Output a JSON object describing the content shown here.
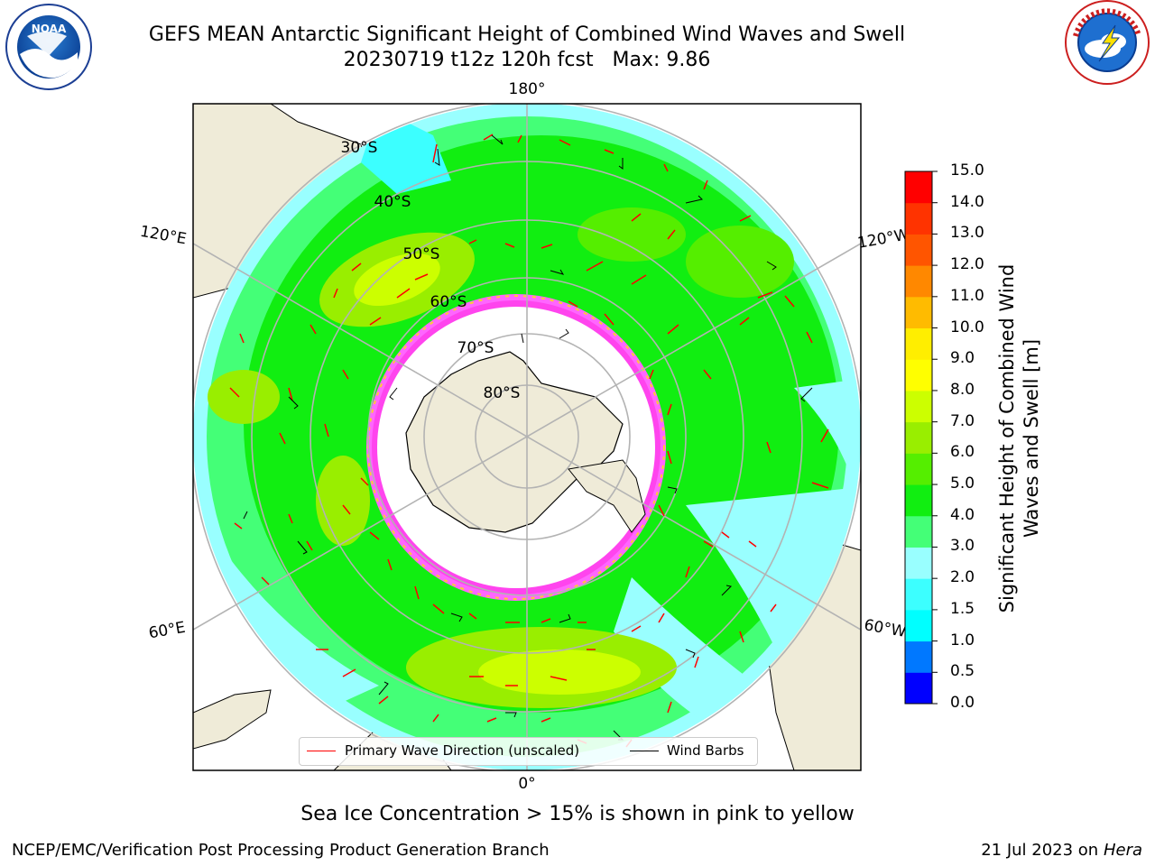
{
  "header": {
    "title_line1": "GEFS MEAN Antarctic Significant Height of Combined Wind Waves and Swell",
    "title_line2": "20230719 t12z 120h fcst   Max: 9.86"
  },
  "logos": {
    "left_text": "NOAA",
    "left_ring": "NATIONAL OCEANIC AND ATMOSPHERIC ADMINISTRATION · U.S. DEPARTMENT OF COMMERCE",
    "right_ring": "NATIONAL WEATHER SERVICE"
  },
  "map": {
    "lon_labels": [
      "180°",
      "0°",
      "120°E",
      "120°W",
      "60°E",
      "60°W"
    ],
    "lat_labels": [
      "30°S",
      "40°S",
      "50°S",
      "60°S",
      "70°S",
      "80°S"
    ]
  },
  "colorbar": {
    "label": "Significant Height of Combined Wind Waves and Swell [m]",
    "ticks": [
      "15.0",
      "14.0",
      "13.0",
      "12.0",
      "11.0",
      "10.0",
      "9.0",
      "8.0",
      "7.0",
      "6.0",
      "5.0",
      "4.0",
      "3.0",
      "2.0",
      "1.5",
      "1.0",
      "0.5",
      "0.0"
    ],
    "colors_bottom_to_top": [
      "#0000ff",
      "#0078ff",
      "#00ffff",
      "#3cffff",
      "#99ffff",
      "#44ff77",
      "#11ee11",
      "#55ee00",
      "#99ee00",
      "#ccff00",
      "#ffff00",
      "#ffee00",
      "#ffbb00",
      "#ff8800",
      "#ff5500",
      "#ff3300",
      "#ff0000"
    ]
  },
  "legend": {
    "wave_direction": "Primary Wave Direction (unscaled)",
    "wind_barbs": "Wind Barbs",
    "wave_color": "#ff0000",
    "barb_color": "#000000"
  },
  "subtitle": "Sea Ice Concentration > 15% is shown in pink to yellow",
  "footer": {
    "left": "NCEP/EMC/Verification Post Processing Product Generation Branch",
    "date": "21 Jul 2023 on",
    "host": "Hera"
  }
}
